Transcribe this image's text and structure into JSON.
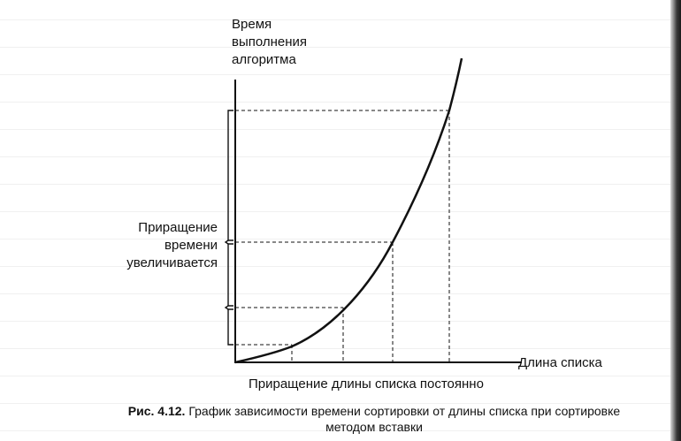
{
  "diagram": {
    "y_axis_label_lines": [
      "Время",
      "выполнения",
      "алгоритма"
    ],
    "x_axis_label": "Длина списка",
    "left_annotation_lines": [
      "Приращение",
      "времени",
      "увеличивается"
    ],
    "bottom_annotation": "Приращение длины списка постоянно"
  },
  "caption": {
    "prefix": "Рис. 4.12.",
    "line1": " График зависимости времени сортировки от длины списка при сортировке",
    "line2": "методом вставки"
  }
}
